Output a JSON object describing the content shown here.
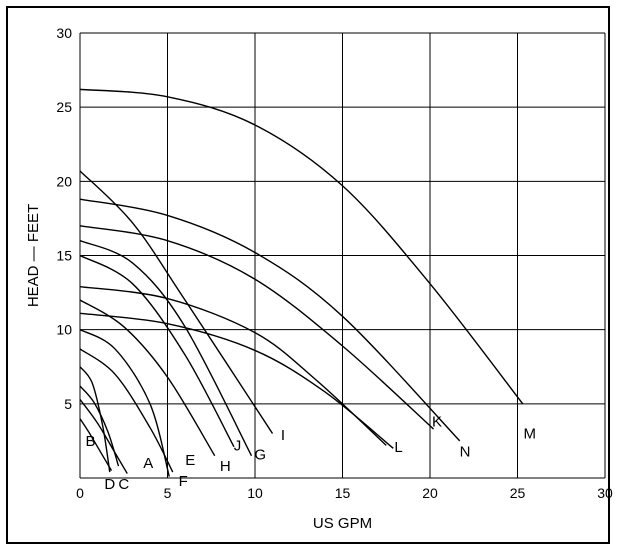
{
  "chart_data": {
    "type": "line",
    "xlabel": "US GPM",
    "ylabel": "HEAD — FEET",
    "xlim": [
      0,
      30
    ],
    "ylim": [
      0,
      30
    ],
    "x_ticks": [
      "0",
      "5",
      "10",
      "15",
      "20",
      "25",
      "30"
    ],
    "y_ticks": [
      "5",
      "10",
      "15",
      "20",
      "25",
      "30"
    ],
    "grid": true,
    "series": [
      {
        "name": "A",
        "points": [
          [
            0,
            5.3
          ],
          [
            1,
            3.7
          ],
          [
            2,
            1.7
          ],
          [
            2.7,
            0.3
          ]
        ]
      },
      {
        "name": "B",
        "points": [
          [
            0,
            4.0
          ],
          [
            0.5,
            3.1
          ],
          [
            1.1,
            1.9
          ],
          [
            1.8,
            0.5
          ]
        ]
      },
      {
        "name": "C",
        "points": [
          [
            0,
            6.2
          ],
          [
            0.8,
            5.1
          ],
          [
            1.6,
            3.1
          ],
          [
            2.2,
            0.8
          ]
        ]
      },
      {
        "name": "D",
        "points": [
          [
            0,
            7.5
          ],
          [
            0.7,
            6.4
          ],
          [
            1.3,
            3.5
          ],
          [
            1.7,
            0.4
          ]
        ]
      },
      {
        "name": "E",
        "points": [
          [
            0,
            8.7
          ],
          [
            2,
            7.0
          ],
          [
            4,
            3.4
          ],
          [
            5.3,
            0.4
          ]
        ]
      },
      {
        "name": "F",
        "points": [
          [
            0,
            10.0
          ],
          [
            2,
            8.7
          ],
          [
            4,
            5.0
          ],
          [
            5.1,
            0.1
          ]
        ]
      },
      {
        "name": "H",
        "points": [
          [
            0,
            12.0
          ],
          [
            2.5,
            10.2
          ],
          [
            5,
            6.8
          ],
          [
            7.7,
            1.5
          ]
        ]
      },
      {
        "name": "J",
        "points": [
          [
            0,
            15.0
          ],
          [
            3,
            13.1
          ],
          [
            6,
            8.3
          ],
          [
            8.8,
            2.1
          ]
        ]
      },
      {
        "name": "G",
        "points": [
          [
            0,
            16.0
          ],
          [
            3,
            14.5
          ],
          [
            6,
            10.2
          ],
          [
            9.8,
            1.5
          ]
        ]
      },
      {
        "name": "I",
        "points": [
          [
            0,
            20.7
          ],
          [
            3,
            17.2
          ],
          [
            6,
            12.0
          ],
          [
            11.0,
            3.0
          ]
        ]
      },
      {
        "name": "L",
        "points": [
          [
            0,
            12.9
          ],
          [
            5,
            12.1
          ],
          [
            10,
            9.8
          ],
          [
            13.5,
            6.6
          ],
          [
            17.5,
            2.2
          ]
        ]
      },
      {
        "name": "K",
        "points": [
          [
            0,
            17.0
          ],
          [
            5,
            16.0
          ],
          [
            10,
            13.4
          ],
          [
            15,
            8.9
          ],
          [
            20.2,
            3.3
          ]
        ]
      },
      {
        "name": "N",
        "points": [
          [
            0,
            18.8
          ],
          [
            5,
            17.7
          ],
          [
            10,
            15.2
          ],
          [
            15,
            10.9
          ],
          [
            21.7,
            2.5
          ]
        ]
      },
      {
        "name": "M",
        "points": [
          [
            0,
            26.2
          ],
          [
            5,
            25.7
          ],
          [
            10,
            23.8
          ],
          [
            15,
            19.7
          ],
          [
            20,
            13.1
          ],
          [
            25.3,
            5.0
          ]
        ]
      },
      {
        "name": "",
        "points": [
          [
            0,
            11.1
          ],
          [
            5,
            10.4
          ],
          [
            10,
            8.6
          ],
          [
            14,
            5.8
          ],
          [
            17.9,
            2.0
          ]
        ]
      }
    ],
    "labels": [
      {
        "text": "A",
        "x": 3.9,
        "y": 1.0
      },
      {
        "text": "B",
        "x": 0.6,
        "y": 2.5
      },
      {
        "text": "C",
        "x": 2.5,
        "y": -0.4
      },
      {
        "text": "D",
        "x": 1.7,
        "y": -0.4
      },
      {
        "text": "E",
        "x": 6.3,
        "y": 1.2
      },
      {
        "text": "F",
        "x": 5.9,
        "y": -0.2
      },
      {
        "text": "G",
        "x": 10.3,
        "y": 1.6
      },
      {
        "text": "H",
        "x": 8.3,
        "y": 0.8
      },
      {
        "text": "I",
        "x": 11.6,
        "y": 2.9
      },
      {
        "text": "J",
        "x": 9.0,
        "y": 2.2
      },
      {
        "text": "K",
        "x": 20.4,
        "y": 3.8
      },
      {
        "text": "L",
        "x": 18.2,
        "y": 2.1
      },
      {
        "text": "M",
        "x": 25.7,
        "y": 3.0
      },
      {
        "text": "N",
        "x": 22.0,
        "y": 1.8
      }
    ]
  }
}
